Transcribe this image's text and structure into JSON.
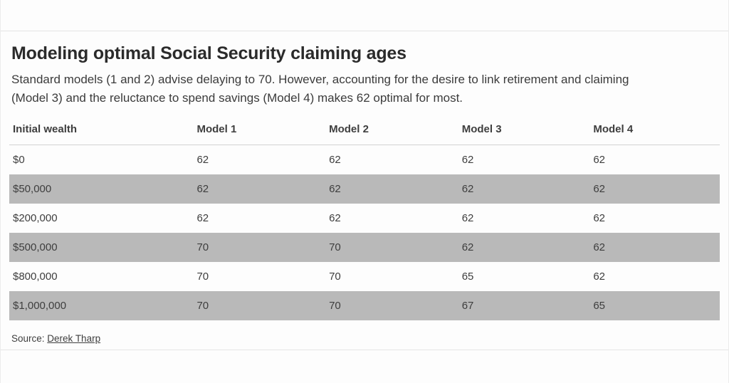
{
  "page": {
    "background": "#fdfdfd",
    "divider_color": "#e4e4e4"
  },
  "header": {
    "title": "Modeling optimal Social Security claiming ages",
    "subtitle_lines": [
      "Standard models (1 and 2) advise delaying to 70. However, accounting for the desire to link retirement and claiming",
      "(Model 3) and the reluctance to spend savings (Model 4) makes 62 optimal for most."
    ]
  },
  "chart_data": {
    "type": "table",
    "title": "Modeling optimal Social Security claiming ages",
    "subtitle": "Standard models (1 and 2) advise delaying to 70. However, accounting for the desire to link retirement and claiming (Model 3) and the reluctance to spend savings (Model 4) makes 62 optimal for most.",
    "columns": [
      "Initial wealth",
      "Model 1",
      "Model 2",
      "Model 3",
      "Model 4"
    ],
    "rows": [
      [
        "$0",
        "62",
        "62",
        "62",
        "62"
      ],
      [
        "$50,000",
        "62",
        "62",
        "62",
        "62"
      ],
      [
        "$200,000",
        "62",
        "62",
        "62",
        "62"
      ],
      [
        "$500,000",
        "70",
        "70",
        "62",
        "62"
      ],
      [
        "$800,000",
        "70",
        "70",
        "65",
        "62"
      ],
      [
        "$1,000,000",
        "70",
        "70",
        "67",
        "65"
      ]
    ],
    "striped_row_indexes": [
      1,
      3,
      5
    ],
    "stripe_color": "#b9b9b9",
    "layout": {
      "header_divider": true,
      "gridlines": false,
      "value_alignment": "left"
    }
  },
  "footer": {
    "source_label": "Source:",
    "source_link_text": "Derek Tharp"
  }
}
